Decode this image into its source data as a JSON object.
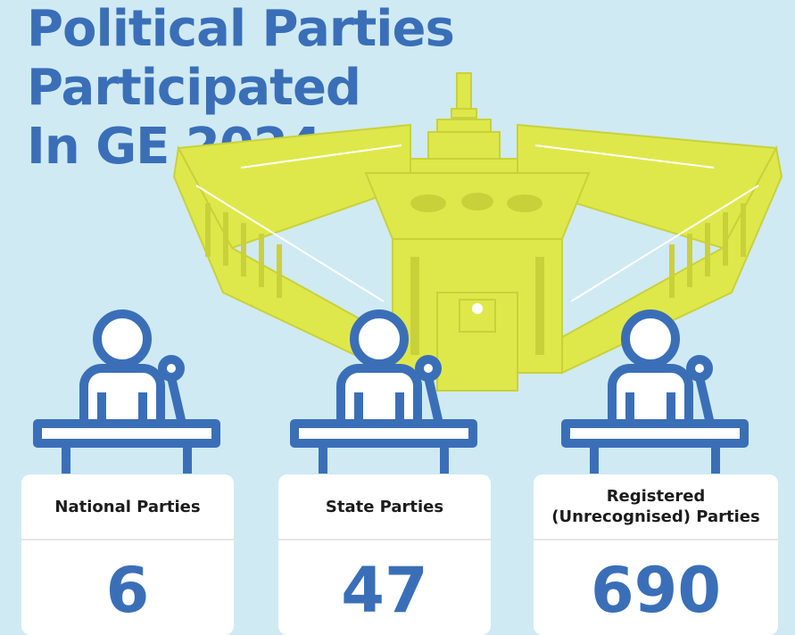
{
  "title": {
    "line1": "Political Parties Participated",
    "line2": "In GE 2024"
  },
  "colors": {
    "background": "#cfeaf3",
    "accent_blue": "#3a6fb8",
    "parliament_yellow": "#dfe84a"
  },
  "cards": [
    {
      "label": "National Parties",
      "value": "6"
    },
    {
      "label": "State Parties",
      "value": "47"
    },
    {
      "label": "Registered\n(Unrecognised) Parties",
      "label_line1": "Registered",
      "label_line2": "(Unrecognised) Parties",
      "value": "690"
    }
  ],
  "icons": [
    "parliament-building-icon",
    "speaker-podium-icon"
  ]
}
